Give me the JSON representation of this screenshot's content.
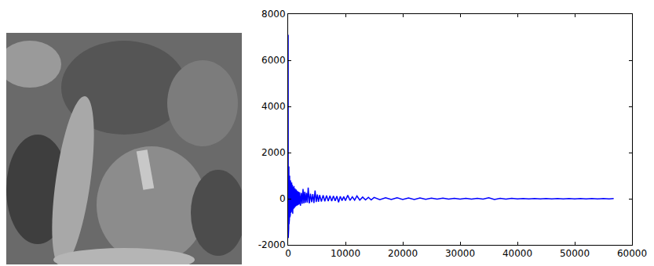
{
  "chart_data": {
    "type": "line",
    "color": "#0000ff",
    "grid": false,
    "xlim": [
      0,
      60000
    ],
    "xticks": [
      0,
      10000,
      20000,
      30000,
      40000,
      50000,
      60000
    ],
    "ylim": [
      -2000,
      8000
    ],
    "yticks": [
      -2000,
      0,
      2000,
      4000,
      6000,
      8000
    ],
    "x": [
      0,
      20,
      40,
      60,
      80,
      100,
      130,
      160,
      190,
      220,
      260,
      300,
      340,
      380,
      420,
      470,
      520,
      570,
      620,
      680,
      740,
      800,
      870,
      940,
      1010,
      1100,
      1200,
      1300,
      1400,
      1500,
      1600,
      1700,
      1800,
      1900,
      2000,
      2150,
      2300,
      2450,
      2600,
      2750,
      2900,
      3050,
      3200,
      3350,
      3500,
      3700,
      3900,
      4100,
      4300,
      4500,
      4700,
      4900,
      5100,
      5300,
      5500,
      5800,
      6100,
      6400,
      6700,
      7000,
      7300,
      7600,
      7900,
      8200,
      8500,
      8800,
      9100,
      9400,
      9700,
      10000,
      10400,
      10800,
      11200,
      11600,
      12000,
      12500,
      13000,
      13500,
      14000,
      14500,
      15000,
      16000,
      17000,
      18000,
      19000,
      20000,
      21000,
      22000,
      23000,
      24000,
      25000,
      26000,
      27000,
      28000,
      29000,
      30000,
      31000,
      32000,
      33000,
      34000,
      35000,
      36000,
      37000,
      38000,
      39000,
      40000,
      41000,
      42000,
      43000,
      44000,
      45000,
      46000,
      47000,
      48000,
      49000,
      50000,
      51000,
      52000,
      53000,
      54000,
      55000,
      56000,
      56800
    ],
    "values": [
      7100,
      -1700,
      1900,
      -1500,
      1700,
      -1300,
      1400,
      -1100,
      1200,
      -900,
      1000,
      -800,
      900,
      -700,
      800,
      -600,
      750,
      -550,
      700,
      -500,
      600,
      -650,
      500,
      -450,
      550,
      -400,
      450,
      -350,
      400,
      -300,
      350,
      -280,
      300,
      -250,
      280,
      -300,
      250,
      -220,
      420,
      -200,
      300,
      -180,
      250,
      -170,
      480,
      -200,
      220,
      -150,
      200,
      -180,
      350,
      -140,
      180,
      -130,
      160,
      -120,
      150,
      -110,
      140,
      -100,
      130,
      -100,
      120,
      -90,
      110,
      -150,
      100,
      -80,
      90,
      -80,
      150,
      -70,
      80,
      -60,
      120,
      -60,
      70,
      -50,
      60,
      -50,
      55,
      -40,
      45,
      -35,
      40,
      -30,
      35,
      -30,
      30,
      -25,
      25,
      -20,
      25,
      -20,
      20,
      -20,
      20,
      -18,
      18,
      -15,
      40,
      -30,
      15,
      -15,
      15,
      -12,
      12,
      -12,
      12,
      -10,
      10,
      -10,
      10,
      -10,
      10,
      -8,
      8,
      -8,
      8,
      -8,
      8,
      -8,
      5
    ]
  }
}
